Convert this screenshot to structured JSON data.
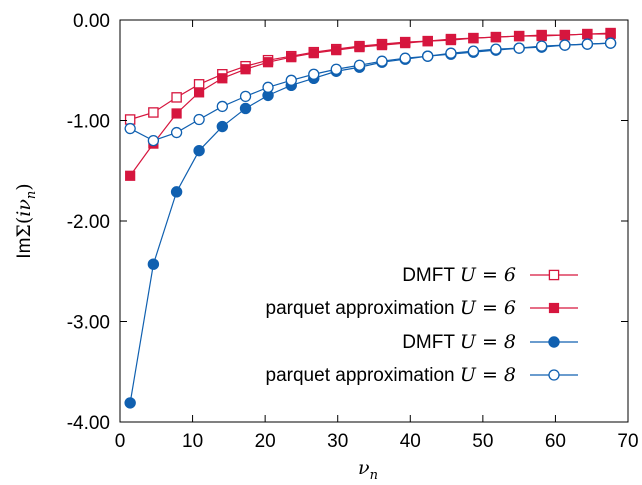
{
  "chart_data": {
    "type": "line",
    "title": "",
    "xlabel_var": "ν",
    "xlabel_sub": "n",
    "ylabel_prefix": "Im",
    "ylabel_sigma": "Σ(",
    "ylabel_i": "iν",
    "ylabel_sub": "n",
    "ylabel_close": ")",
    "xlim": [
      0,
      70
    ],
    "ylim": [
      -4.0,
      0.0
    ],
    "xticks": [
      0,
      10,
      20,
      30,
      40,
      50,
      60,
      70
    ],
    "xtick_labels": [
      "0",
      "10",
      "20",
      "30",
      "40",
      "50",
      "60",
      "70"
    ],
    "yticks": [
      0,
      -1,
      -2,
      -3,
      -4
    ],
    "ytick_labels": [
      "0.00",
      "-1.00",
      "-2.00",
      "-3.00",
      "-4.00"
    ],
    "legend_position": "bottom-right",
    "grid": false,
    "x": [
      1.4,
      4.6,
      7.8,
      10.9,
      14.1,
      17.3,
      20.4,
      23.6,
      26.7,
      29.8,
      33.0,
      36.1,
      39.3,
      42.4,
      45.6,
      48.7,
      51.8,
      55.0,
      58.1,
      61.3,
      64.4,
      67.6
    ],
    "series": [
      {
        "name": "DMFT",
        "math_label": "U = 6",
        "color": "#d6163e",
        "marker": "open-square",
        "values": [
          -0.99,
          -0.92,
          -0.77,
          -0.64,
          -0.54,
          -0.46,
          -0.4,
          -0.36,
          -0.32,
          -0.29,
          -0.26,
          -0.24,
          -0.22,
          -0.21,
          -0.19,
          -0.18,
          -0.17,
          -0.16,
          -0.15,
          -0.15,
          -0.14,
          -0.13
        ]
      },
      {
        "name": "parquet approximation",
        "math_label": "U = 6",
        "color": "#d6163e",
        "marker": "filled-square",
        "values": [
          -1.55,
          -1.23,
          -0.93,
          -0.72,
          -0.58,
          -0.49,
          -0.42,
          -0.37,
          -0.33,
          -0.3,
          -0.27,
          -0.25,
          -0.23,
          -0.21,
          -0.2,
          -0.18,
          -0.17,
          -0.16,
          -0.16,
          -0.15,
          -0.14,
          -0.14
        ]
      },
      {
        "name": "DMFT",
        "math_label": "U = 8",
        "color": "#1060b0",
        "marker": "filled-circle",
        "values": [
          -3.81,
          -2.43,
          -1.71,
          -1.3,
          -1.06,
          -0.88,
          -0.75,
          -0.65,
          -0.58,
          -0.51,
          -0.47,
          -0.42,
          -0.39,
          -0.36,
          -0.34,
          -0.32,
          -0.3,
          -0.28,
          -0.27,
          -0.25,
          -0.24,
          -0.23
        ]
      },
      {
        "name": "parquet approximation",
        "math_label": "U = 8",
        "color": "#1060b0",
        "marker": "open-circle",
        "values": [
          -1.08,
          -1.2,
          -1.12,
          -0.99,
          -0.86,
          -0.76,
          -0.67,
          -0.6,
          -0.54,
          -0.49,
          -0.45,
          -0.41,
          -0.38,
          -0.36,
          -0.33,
          -0.31,
          -0.29,
          -0.28,
          -0.26,
          -0.25,
          -0.24,
          -0.23
        ]
      }
    ]
  }
}
